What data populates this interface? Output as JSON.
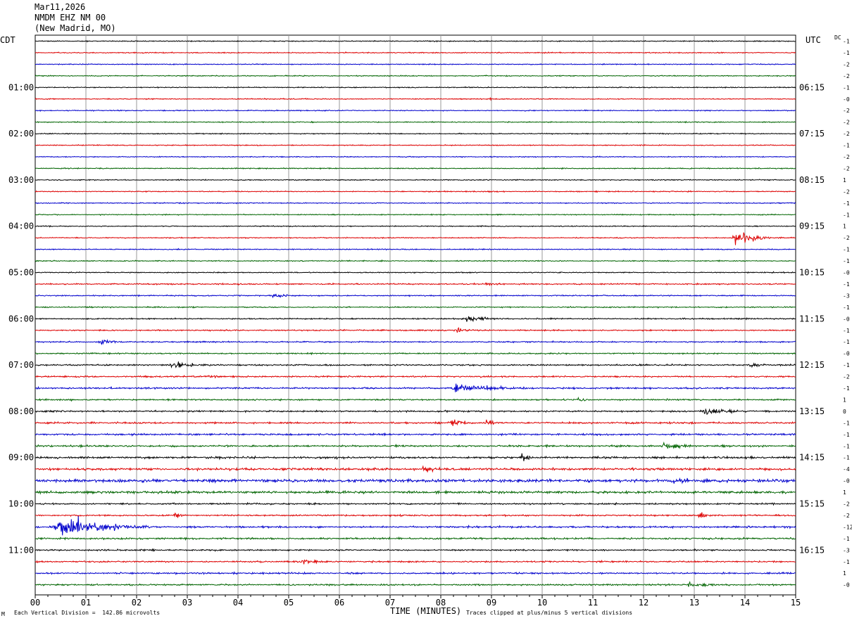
{
  "header": {
    "date": "Mar11,2026",
    "station": "NMDM EHZ NM 00",
    "location": "(New Madrid, MO)"
  },
  "labels": {
    "left_tz": "CDT",
    "right_tz": "UTC",
    "dc_label": "DC",
    "x_title": "TIME (MINUTES)",
    "scale_note": "Each Vertical Division =  142.86 microvolts",
    "clip_note": "Traces clipped at plus/minus 5 vertical divisions",
    "corner_mark": "M"
  },
  "colors": {
    "traces": [
      "#000000",
      "#dd0000",
      "#0000cc",
      "#006400"
    ],
    "grid": "#999999"
  },
  "chart_data": {
    "type": "line",
    "title": "NMDM EHZ NM 00 (New Madrid, MO)",
    "xlabel": "TIME (MINUTES)",
    "xlim": [
      0,
      15
    ],
    "x_ticks": [
      "00",
      "01",
      "02",
      "03",
      "04",
      "05",
      "06",
      "07",
      "08",
      "09",
      "10",
      "11",
      "12",
      "13",
      "14",
      "15"
    ],
    "rows_per_hour": 4,
    "left_hour_labels": [
      "01:00",
      "02:00",
      "03:00",
      "04:00",
      "05:00",
      "06:00",
      "07:00",
      "08:00",
      "09:00",
      "10:00",
      "11:00"
    ],
    "right_hour_labels": [
      "06:15",
      "07:15",
      "08:15",
      "09:15",
      "10:15",
      "11:15",
      "12:15",
      "13:15",
      "14:15",
      "15:15",
      "16:15"
    ],
    "dc_offsets": [
      "-1",
      "-1",
      "-2",
      "-2",
      "-1",
      "-0",
      "-2",
      "-2",
      "-2",
      "-1",
      "-2",
      "-2",
      "1",
      "-2",
      "-1",
      "-1",
      "1",
      "-2",
      "-1",
      "-1",
      "-0",
      "-1",
      "-3",
      "-1",
      "-0",
      "-1",
      "-1",
      "-0",
      "-1",
      "-2",
      "-1",
      "1",
      "0",
      "-1",
      "-1",
      "-1",
      "-1",
      "-4",
      "-0",
      "1",
      "-2",
      "-2",
      "-12",
      "-1",
      "-3",
      "-1",
      "1",
      "-0"
    ],
    "noise_levels": [
      1,
      1,
      1,
      1,
      1,
      1,
      1,
      1,
      1,
      1,
      1,
      1,
      1,
      1,
      1,
      1,
      1,
      1,
      1,
      1,
      1,
      1.3,
      1.2,
      1.2,
      1.3,
      1.3,
      1.3,
      1.3,
      1.5,
      1.5,
      1.6,
      1.5,
      1.6,
      1.7,
      1.8,
      1.8,
      2,
      2.3,
      3,
      2.4,
      1.6,
      1.6,
      1.8,
      1.8,
      1.5,
      1.5,
      1.6,
      1.6
    ],
    "events": [
      {
        "row": 5,
        "minute": 8.95,
        "amp": 3,
        "dur": 0.15
      },
      {
        "row": 17,
        "minute": 13.8,
        "amp": 20,
        "dur": 0.3
      },
      {
        "row": 21,
        "minute": 8.9,
        "amp": 4,
        "dur": 0.3
      },
      {
        "row": 22,
        "minute": 4.7,
        "amp": 4,
        "dur": 0.4
      },
      {
        "row": 24,
        "minute": 8.5,
        "amp": 7,
        "dur": 0.4
      },
      {
        "row": 25,
        "minute": 8.3,
        "amp": 6,
        "dur": 0.3
      },
      {
        "row": 26,
        "minute": 1.3,
        "amp": 7,
        "dur": 0.3
      },
      {
        "row": 28,
        "minute": 2.7,
        "amp": 9,
        "dur": 0.4
      },
      {
        "row": 28,
        "minute": 14.1,
        "amp": 5,
        "dur": 0.3
      },
      {
        "row": 29,
        "minute": 3.4,
        "amp": 3,
        "dur": 0.4
      },
      {
        "row": 30,
        "minute": 8.3,
        "amp": 8,
        "dur": 1.0
      },
      {
        "row": 31,
        "minute": 10.7,
        "amp": 6,
        "dur": 0.2
      },
      {
        "row": 32,
        "minute": 13.2,
        "amp": 8,
        "dur": 0.5
      },
      {
        "row": 33,
        "minute": 8.2,
        "amp": 7,
        "dur": 0.4
      },
      {
        "row": 33,
        "minute": 8.9,
        "amp": 5,
        "dur": 0.4
      },
      {
        "row": 35,
        "minute": 12.4,
        "amp": 6,
        "dur": 0.6
      },
      {
        "row": 36,
        "minute": 9.6,
        "amp": 7,
        "dur": 0.3
      },
      {
        "row": 37,
        "minute": 7.65,
        "amp": 12,
        "dur": 0.2
      },
      {
        "row": 38,
        "minute": 12.5,
        "amp": 5,
        "dur": 1.5
      },
      {
        "row": 41,
        "minute": 2.75,
        "amp": 6,
        "dur": 0.2
      },
      {
        "row": 41,
        "minute": 13.1,
        "amp": 6,
        "dur": 0.2
      },
      {
        "row": 42,
        "minute": 0.5,
        "amp": 22,
        "dur": 0.8
      },
      {
        "row": 45,
        "minute": 5.3,
        "amp": 4,
        "dur": 0.6
      },
      {
        "row": 47,
        "minute": 12.9,
        "amp": 5,
        "dur": 0.5
      }
    ]
  }
}
